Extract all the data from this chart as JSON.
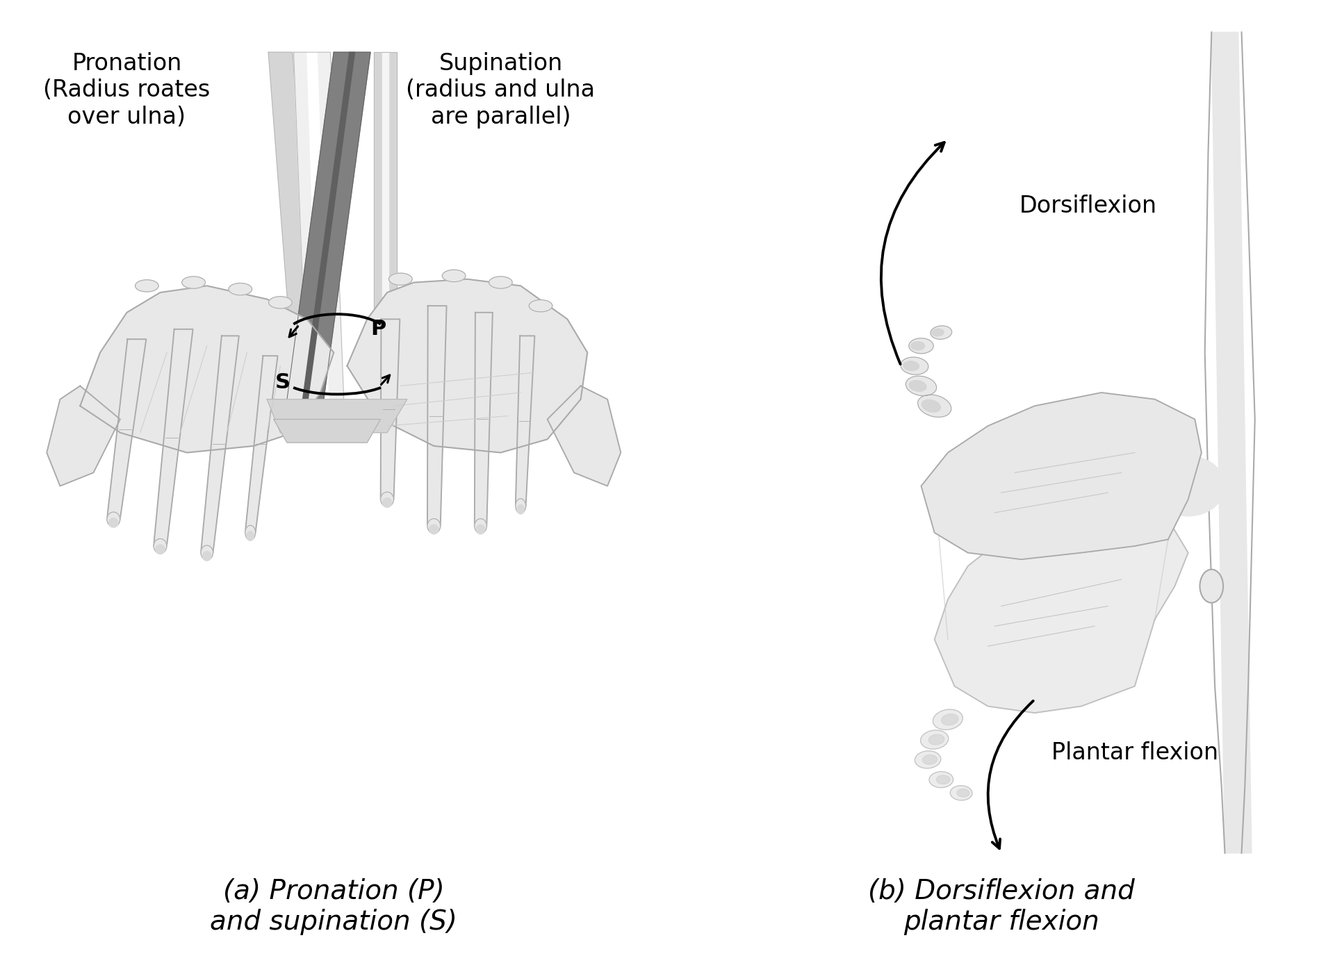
{
  "bg_color": "#ffffff",
  "fig_width": 19.21,
  "fig_height": 13.99,
  "panel_a_title": "(a) Pronation (P)\nand supination (S)",
  "panel_b_title": "(b) Dorsiflexion and\nplantar flexion",
  "label_pronation": "Pronation\n(Radius roates\nover ulna)",
  "label_supination": "Supination\n(radius and ulna\nare parallel)",
  "label_dorsiflexion": "Dorsiflexion",
  "label_plantar": "Plantar flexion",
  "label_P": "P",
  "label_S": "S",
  "text_color": "#000000",
  "line_color": "#000000",
  "bone_light": "#d8d8d8",
  "bone_mid": "#b0b0b0",
  "bone_dark": "#787878",
  "hand_color": "#e8e8e8",
  "hand_stroke": "#aaaaaa",
  "foot_color": "#e8e8e8",
  "foot_stroke": "#aaaaaa",
  "title_fontsize": 28,
  "label_fontsize": 24,
  "ps_fontsize": 22
}
